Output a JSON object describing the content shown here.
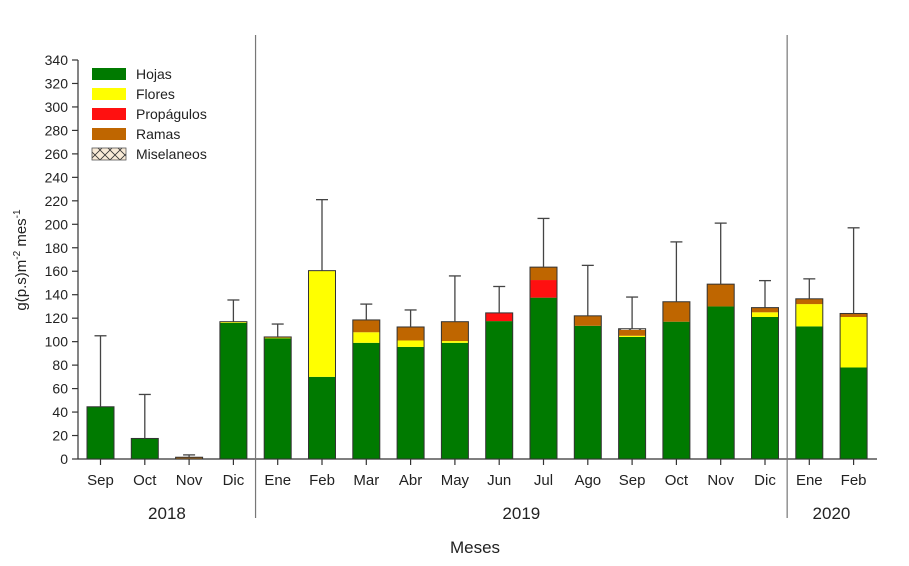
{
  "chart_data": {
    "type": "bar",
    "stacked": true,
    "title": "",
    "xlabel": "Meses",
    "ylabel": "g(p.s)m",
    "ylabel_sup1": "-2",
    "ylabel_mid": " mes",
    "ylabel_sup2": "-1",
    "ylim": [
      0,
      340
    ],
    "yticks": [
      0,
      20,
      40,
      60,
      80,
      100,
      120,
      140,
      160,
      180,
      200,
      220,
      240,
      260,
      280,
      300,
      320,
      340
    ],
    "grid": false,
    "legend_position": "top-left",
    "categories": [
      "Sep",
      "Oct",
      "Nov",
      "Dic",
      "Ene",
      "Feb",
      "Mar",
      "Abr",
      "May",
      "Jun",
      "Jul",
      "Ago",
      "Sep",
      "Oct",
      "Nov",
      "Dic",
      "Ene",
      "Feb"
    ],
    "year_groups": [
      {
        "label": "2018",
        "start": 0,
        "end": 3
      },
      {
        "label": "2019",
        "start": 4,
        "end": 15
      },
      {
        "label": "2020",
        "start": 16,
        "end": 17
      }
    ],
    "series": [
      {
        "name": "Hojas",
        "color": "#007a00",
        "values": [
          44.5,
          17.5,
          0.5,
          116,
          103,
          70,
          99,
          95.5,
          99,
          117.5,
          137.5,
          113.5,
          104,
          117,
          130,
          121,
          113,
          78
        ]
      },
      {
        "name": "Flores",
        "color": "#ffff00",
        "values": [
          0,
          0,
          0,
          1,
          0.5,
          90.5,
          9,
          5.5,
          1.5,
          0,
          0,
          0,
          1,
          0,
          0,
          4,
          19,
          43
        ]
      },
      {
        "name": "Propágulos",
        "color": "#ff1010",
        "values": [
          0,
          0,
          0,
          0,
          0,
          0,
          0,
          0,
          0,
          7,
          15,
          0,
          0,
          0,
          0,
          0,
          0,
          0
        ]
      },
      {
        "name": "Ramas",
        "color": "#bf6600",
        "values": [
          0,
          0,
          1,
          0,
          0.5,
          0,
          10.5,
          11.5,
          16.5,
          0,
          11,
          8.5,
          5,
          17,
          19,
          4,
          4.5,
          3
        ]
      },
      {
        "name": "Miselaneos",
        "color": "#f8ead6",
        "hatch": "cross",
        "values": [
          0,
          0,
          0,
          0,
          0,
          0,
          0,
          0,
          0,
          0,
          0,
          0,
          1,
          0,
          0,
          0,
          0,
          0
        ]
      }
    ],
    "error_upper": [
      105,
      55,
      3.5,
      135.5,
      115,
      221,
      132,
      127,
      156,
      147,
      205,
      165,
      138,
      185,
      201,
      152,
      153.5,
      197
    ]
  }
}
